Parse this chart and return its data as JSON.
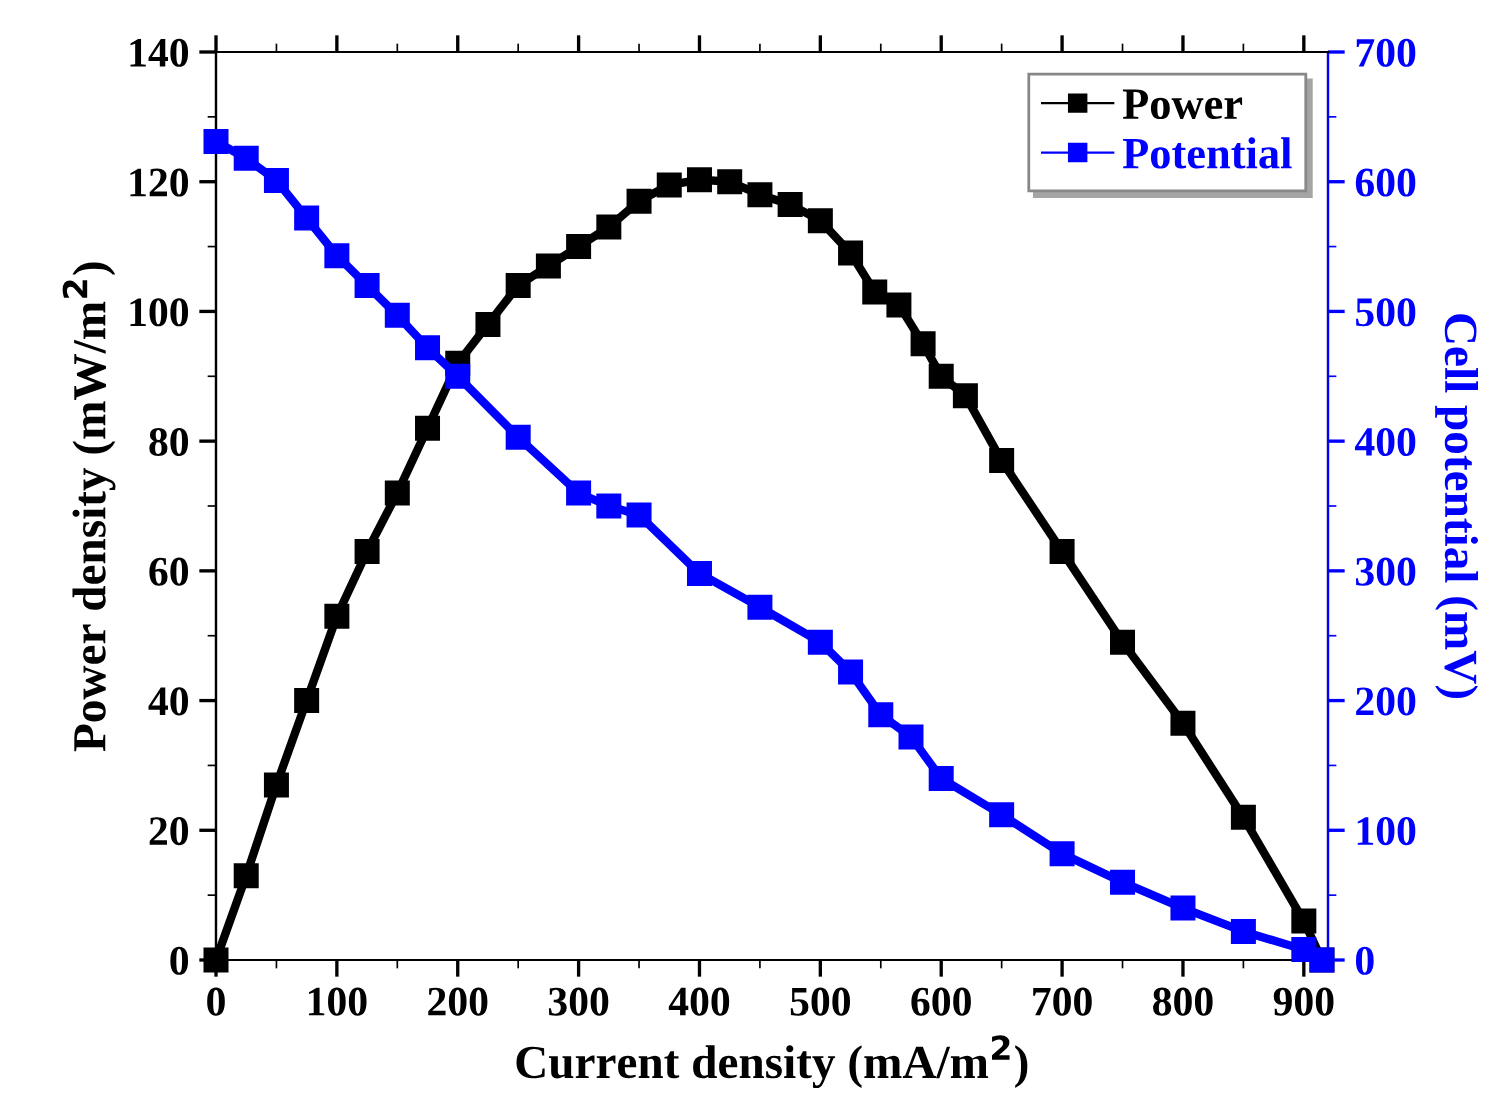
{
  "chart_data": {
    "type": "line",
    "xlabel": "Current density (mA/m$^{2}$)",
    "ylabel": "Power density (mW/m$^{2}$)",
    "y2label": "Cell potential (mV)",
    "xlim": [
      0,
      920
    ],
    "xticks": [
      0,
      100,
      200,
      300,
      400,
      500,
      600,
      700,
      800,
      900
    ],
    "ylim": [
      0,
      140
    ],
    "yticks": [
      0,
      20,
      40,
      60,
      80,
      100,
      120,
      140
    ],
    "y2lim": [
      0,
      700
    ],
    "y2ticks": [
      0,
      100,
      200,
      300,
      400,
      500,
      600,
      700
    ],
    "grid": false,
    "legend": "top right",
    "marker": "square",
    "line_style": "solid",
    "series": [
      {
        "name": "Power",
        "color": "#000000",
        "x": [
          0,
          25,
          50,
          75,
          100,
          125,
          150,
          175,
          200,
          225,
          250,
          275,
          300,
          325,
          350,
          375,
          400,
          425,
          450,
          475,
          500,
          525,
          545,
          565,
          585,
          600,
          620,
          650,
          700,
          750,
          800,
          850,
          900,
          915
        ],
        "values": [
          0,
          13,
          27,
          40,
          53,
          63,
          72,
          82,
          92,
          98,
          104,
          107,
          110,
          113,
          117,
          119.5,
          120.3,
          120,
          118,
          116.5,
          114,
          109,
          103,
          101,
          95,
          90,
          87,
          77,
          63,
          49,
          36.5,
          22,
          6,
          0
        ]
      },
      {
        "name": "Potential",
        "color": "#0000ff",
        "axis": "y2",
        "x": [
          0,
          25,
          50,
          75,
          100,
          125,
          150,
          175,
          200,
          250,
          300,
          325,
          350,
          400,
          450,
          500,
          525,
          550,
          575,
          600,
          650,
          700,
          750,
          800,
          850,
          900,
          915
        ],
        "values": [
          631,
          618,
          601,
          572,
          543,
          520,
          497,
          472,
          450,
          403,
          360,
          350,
          343,
          298,
          272,
          245,
          222,
          189,
          172,
          140,
          112,
          82,
          60,
          40,
          22,
          8,
          0
        ]
      }
    ]
  }
}
